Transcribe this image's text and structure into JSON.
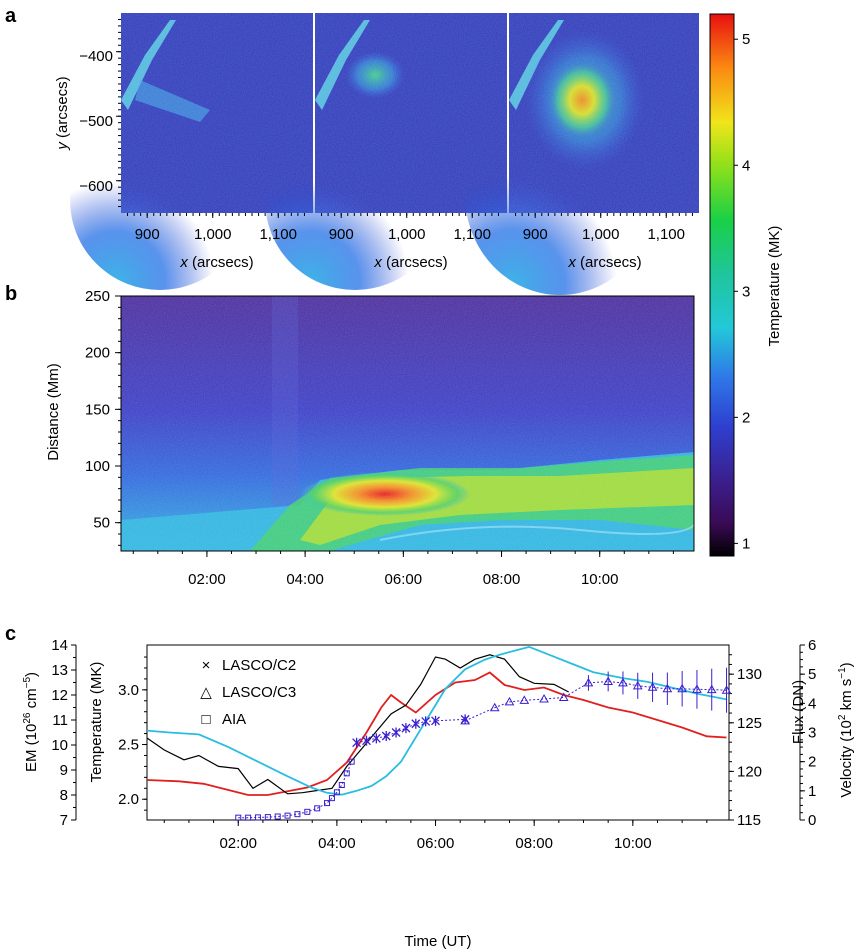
{
  "panel_letters": {
    "a": "a",
    "b": "b",
    "c": "c"
  },
  "colormap": {
    "label": "Temperature (MK)",
    "ticks": [
      "1",
      "2",
      "3",
      "4",
      "5"
    ],
    "range": [
      0.9,
      5.2
    ]
  },
  "panel_a": {
    "xlabel": "x (arcsecs)",
    "ylabel": "y (arcsecs)",
    "xlabel_var": "x",
    "xlabel_unit": " (arcsecs)",
    "ylabel_var": "y",
    "ylabel_unit": " (arcsecs)",
    "xticks": [
      "900",
      "1,000",
      "1,100"
    ],
    "yticks": [
      "−400",
      "−500",
      "−600"
    ]
  },
  "panel_b": {
    "ylabel": "Distance (Mm)",
    "yticks": [
      "250",
      "200",
      "150",
      "100",
      "50"
    ],
    "xticks": [
      "02:00",
      "04:00",
      "06:00",
      "08:00",
      "10:00"
    ]
  },
  "chart_data": [
    {
      "type": "heatmap",
      "panel": "a",
      "images": 3,
      "x_range": [
        860,
        1150
      ],
      "y_range": [
        -650,
        -340
      ],
      "xlabel": "x (arcsecs)",
      "ylabel": "y (arcsecs)"
    },
    {
      "type": "heatmap",
      "panel": "b",
      "x_range": [
        "00:15",
        "11:55"
      ],
      "y_range": [
        25,
        250
      ],
      "ylabel": "Distance (Mm)"
    },
    {
      "type": "line",
      "panel": "c",
      "xlabel": "Time (UT)",
      "x_unit": "hours UT",
      "xticks": [
        "02:00",
        "04:00",
        "06:00",
        "08:00",
        "10:00"
      ],
      "axes": {
        "em": {
          "label": "EM (10",
          "sup": "26",
          "unit": " cm",
          "sup2": "−5",
          "close": ")",
          "ticks": [
            "7",
            "8",
            "9",
            "10",
            "11",
            "12",
            "13",
            "14"
          ],
          "range": [
            7,
            14
          ]
        },
        "temperature": {
          "label": "Temperature (MK)",
          "ticks": [
            "2.0",
            "2.5",
            "3.0"
          ],
          "range": [
            1.81,
            3.41
          ]
        },
        "flux": {
          "label": "Flux (DN)",
          "ticks": [
            "115",
            "120",
            "125",
            "130"
          ],
          "range": [
            115,
            133
          ]
        },
        "velocity": {
          "label": "Velocity (10",
          "sup": "2",
          "unit": " km s",
          "sup2": "−1",
          "close": ")",
          "ticks": [
            "0",
            "1",
            "2",
            "3",
            "4",
            "5",
            "6"
          ],
          "range": [
            0,
            6
          ]
        }
      },
      "legend": [
        {
          "marker": "×",
          "label": "LASCO/C2"
        },
        {
          "marker": "△",
          "label": "LASCO/C3"
        },
        {
          "marker": "□",
          "label": "AIA"
        }
      ],
      "series": [
        {
          "axis": "em",
          "color": "#e02020",
          "x": [
            0.15,
            0.8,
            1.3,
            1.8,
            2.2,
            2.6,
            3.0,
            3.4,
            3.8,
            4.2,
            4.6,
            4.9,
            5.1,
            5.3,
            5.6,
            6.0,
            6.4,
            6.8,
            7.1,
            7.4,
            7.8,
            8.2,
            8.6,
            9.0,
            9.5,
            10.0,
            10.5,
            11.0,
            11.5,
            11.9
          ],
          "y": [
            8.6,
            8.55,
            8.45,
            8.2,
            8.0,
            8.0,
            8.15,
            8.3,
            8.6,
            9.3,
            10.5,
            11.5,
            12.0,
            11.7,
            11.3,
            12.0,
            12.5,
            12.6,
            12.9,
            12.4,
            12.2,
            12.3,
            12.0,
            11.8,
            11.5,
            11.3,
            11.0,
            10.7,
            10.35,
            10.3
          ]
        },
        {
          "axis": "temperature",
          "color": "#000000",
          "x": [
            0.15,
            0.5,
            0.9,
            1.2,
            1.6,
            2.0,
            2.3,
            2.6,
            3.0,
            3.3,
            3.6,
            3.9,
            4.2,
            4.5,
            4.8,
            5.1,
            5.4,
            5.7,
            6.0,
            6.2,
            6.5,
            6.8,
            7.1,
            7.4,
            7.7,
            8.0,
            8.4,
            8.7
          ],
          "y": [
            2.56,
            2.45,
            2.36,
            2.4,
            2.3,
            2.28,
            2.1,
            2.18,
            2.05,
            2.06,
            2.08,
            2.1,
            2.3,
            2.46,
            2.62,
            2.78,
            2.86,
            3.05,
            3.3,
            3.28,
            3.2,
            3.28,
            3.32,
            3.28,
            3.12,
            3.06,
            3.05,
            2.98
          ]
        },
        {
          "axis": "flux",
          "color": "#29bde0",
          "x": [
            0.15,
            0.6,
            1.2,
            1.8,
            2.4,
            3.0,
            3.5,
            3.8,
            4.1,
            4.4,
            4.7,
            5.0,
            5.3,
            5.6,
            5.9,
            6.2,
            6.6,
            7.0,
            7.3,
            7.6,
            7.9,
            8.3,
            8.7,
            9.2,
            9.8,
            10.3,
            10.8,
            11.3,
            11.9
          ],
          "y": [
            124.2,
            124.0,
            123.8,
            122.5,
            121.0,
            119.5,
            118.3,
            117.8,
            117.6,
            118.0,
            118.5,
            119.5,
            121.0,
            123.5,
            126.0,
            128.5,
            130.5,
            131.5,
            132.0,
            132.4,
            132.8,
            132.0,
            131.2,
            130.2,
            129.6,
            129.2,
            128.6,
            128.0,
            127.4
          ]
        },
        {
          "axis": "velocity",
          "color": "#3a1fd0",
          "marker": "square",
          "name": "AIA",
          "x": [
            2.0,
            2.2,
            2.4,
            2.6,
            2.8,
            3.0,
            3.2,
            3.4,
            3.6,
            3.8,
            3.9,
            4.0,
            4.1,
            4.2,
            4.3
          ],
          "y": [
            0.08,
            0.08,
            0.09,
            0.1,
            0.12,
            0.15,
            0.2,
            0.28,
            0.4,
            0.58,
            0.75,
            0.95,
            1.2,
            1.6,
            2.0
          ]
        },
        {
          "axis": "velocity",
          "color": "#3a1fd0",
          "marker": "cross",
          "name": "LASCO/C2",
          "x": [
            4.4,
            4.6,
            4.8,
            5.0,
            5.2,
            5.4,
            5.6,
            5.8,
            6.0,
            6.6
          ],
          "y": [
            2.65,
            2.72,
            2.8,
            2.88,
            3.0,
            3.15,
            3.3,
            3.38,
            3.4,
            3.45
          ]
        },
        {
          "axis": "velocity",
          "color": "#3a1fd0",
          "marker": "triangle",
          "name": "LASCO/C3",
          "x": [
            6.6,
            7.2,
            7.5,
            7.8,
            8.2,
            8.6,
            9.1,
            9.5,
            9.8,
            10.1,
            10.4,
            10.7,
            11.0,
            11.3,
            11.6,
            11.9
          ],
          "y": [
            3.4,
            3.85,
            4.05,
            4.1,
            4.15,
            4.2,
            4.7,
            4.75,
            4.7,
            4.6,
            4.55,
            4.5,
            4.5,
            4.48,
            4.47,
            4.45
          ]
        }
      ]
    }
  ]
}
